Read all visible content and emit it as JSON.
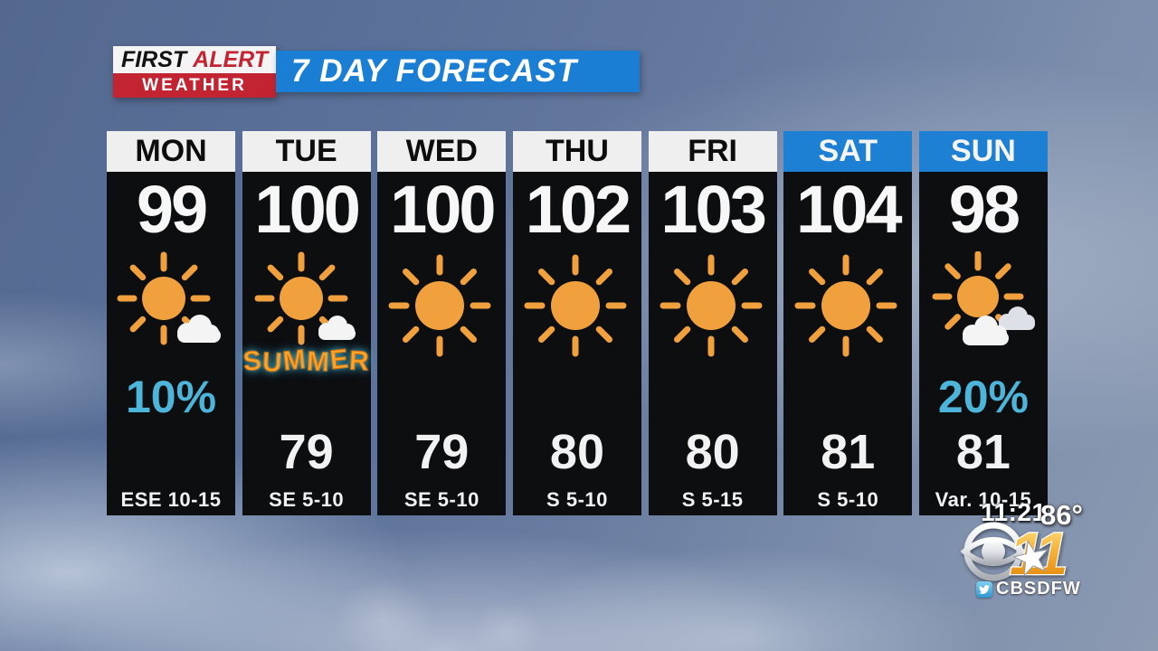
{
  "header": {
    "logo": {
      "first": "FIRST",
      "alert": "ALERT",
      "weather": "WEATHER"
    },
    "banner": "7 DAY FORECAST"
  },
  "forecast": {
    "days": [
      {
        "day": "MON",
        "header": "white",
        "high": "99",
        "icon": "sun-cloud",
        "precip": "10%",
        "low": "",
        "wind": "ESE 10-15",
        "badge": ""
      },
      {
        "day": "TUE",
        "header": "white",
        "high": "100",
        "icon": "sun-cloud-small",
        "precip": "",
        "low": "79",
        "wind": "SE 5-10",
        "badge": "SUMMER"
      },
      {
        "day": "WED",
        "header": "white",
        "high": "100",
        "icon": "sun",
        "precip": "",
        "low": "79",
        "wind": "SE 5-10",
        "badge": ""
      },
      {
        "day": "THU",
        "header": "white",
        "high": "102",
        "icon": "sun",
        "precip": "",
        "low": "80",
        "wind": "S 5-10",
        "badge": ""
      },
      {
        "day": "FRI",
        "header": "white",
        "high": "103",
        "icon": "sun",
        "precip": "",
        "low": "80",
        "wind": "S 5-15",
        "badge": ""
      },
      {
        "day": "SAT",
        "header": "blue",
        "high": "104",
        "icon": "sun",
        "precip": "",
        "low": "81",
        "wind": "S 5-10",
        "badge": ""
      },
      {
        "day": "SUN",
        "header": "blue",
        "high": "98",
        "icon": "sun-clouds",
        "precip": "20%",
        "low": "81",
        "wind": "Var. 10-15",
        "badge": ""
      }
    ]
  },
  "overlay": {
    "time": "11:21",
    "current_temp": "86°",
    "station_number": "11",
    "social_handle": "CBSDFW"
  },
  "colors": {
    "banner_blue": "#1a7fd4",
    "weekend_blue": "#1e80d2",
    "alert_red": "#c22431",
    "panel_black": "#0d0e10",
    "precip_cyan": "#4cb5d9",
    "sun_orange": "#f0a13e",
    "cloud_white": "#f4f4f4"
  },
  "chart_data": {
    "type": "table",
    "title": "7 DAY FORECAST",
    "columns": [
      "day",
      "high_f",
      "low_f",
      "precip_chance",
      "wind",
      "condition"
    ],
    "rows": [
      [
        "MON",
        99,
        null,
        "10%",
        "ESE 10-15",
        "partly-sunny"
      ],
      [
        "TUE",
        100,
        79,
        null,
        "SE 5-10",
        "mostly-sunny"
      ],
      [
        "WED",
        100,
        79,
        null,
        "SE 5-10",
        "sunny"
      ],
      [
        "THU",
        102,
        80,
        null,
        "S 5-10",
        "sunny"
      ],
      [
        "FRI",
        103,
        80,
        null,
        "S 5-15",
        "sunny"
      ],
      [
        "SAT",
        104,
        81,
        null,
        "S 5-10",
        "sunny"
      ],
      [
        "SUN",
        98,
        81,
        "20%",
        "Var. 10-15",
        "partly-sunny"
      ]
    ]
  }
}
